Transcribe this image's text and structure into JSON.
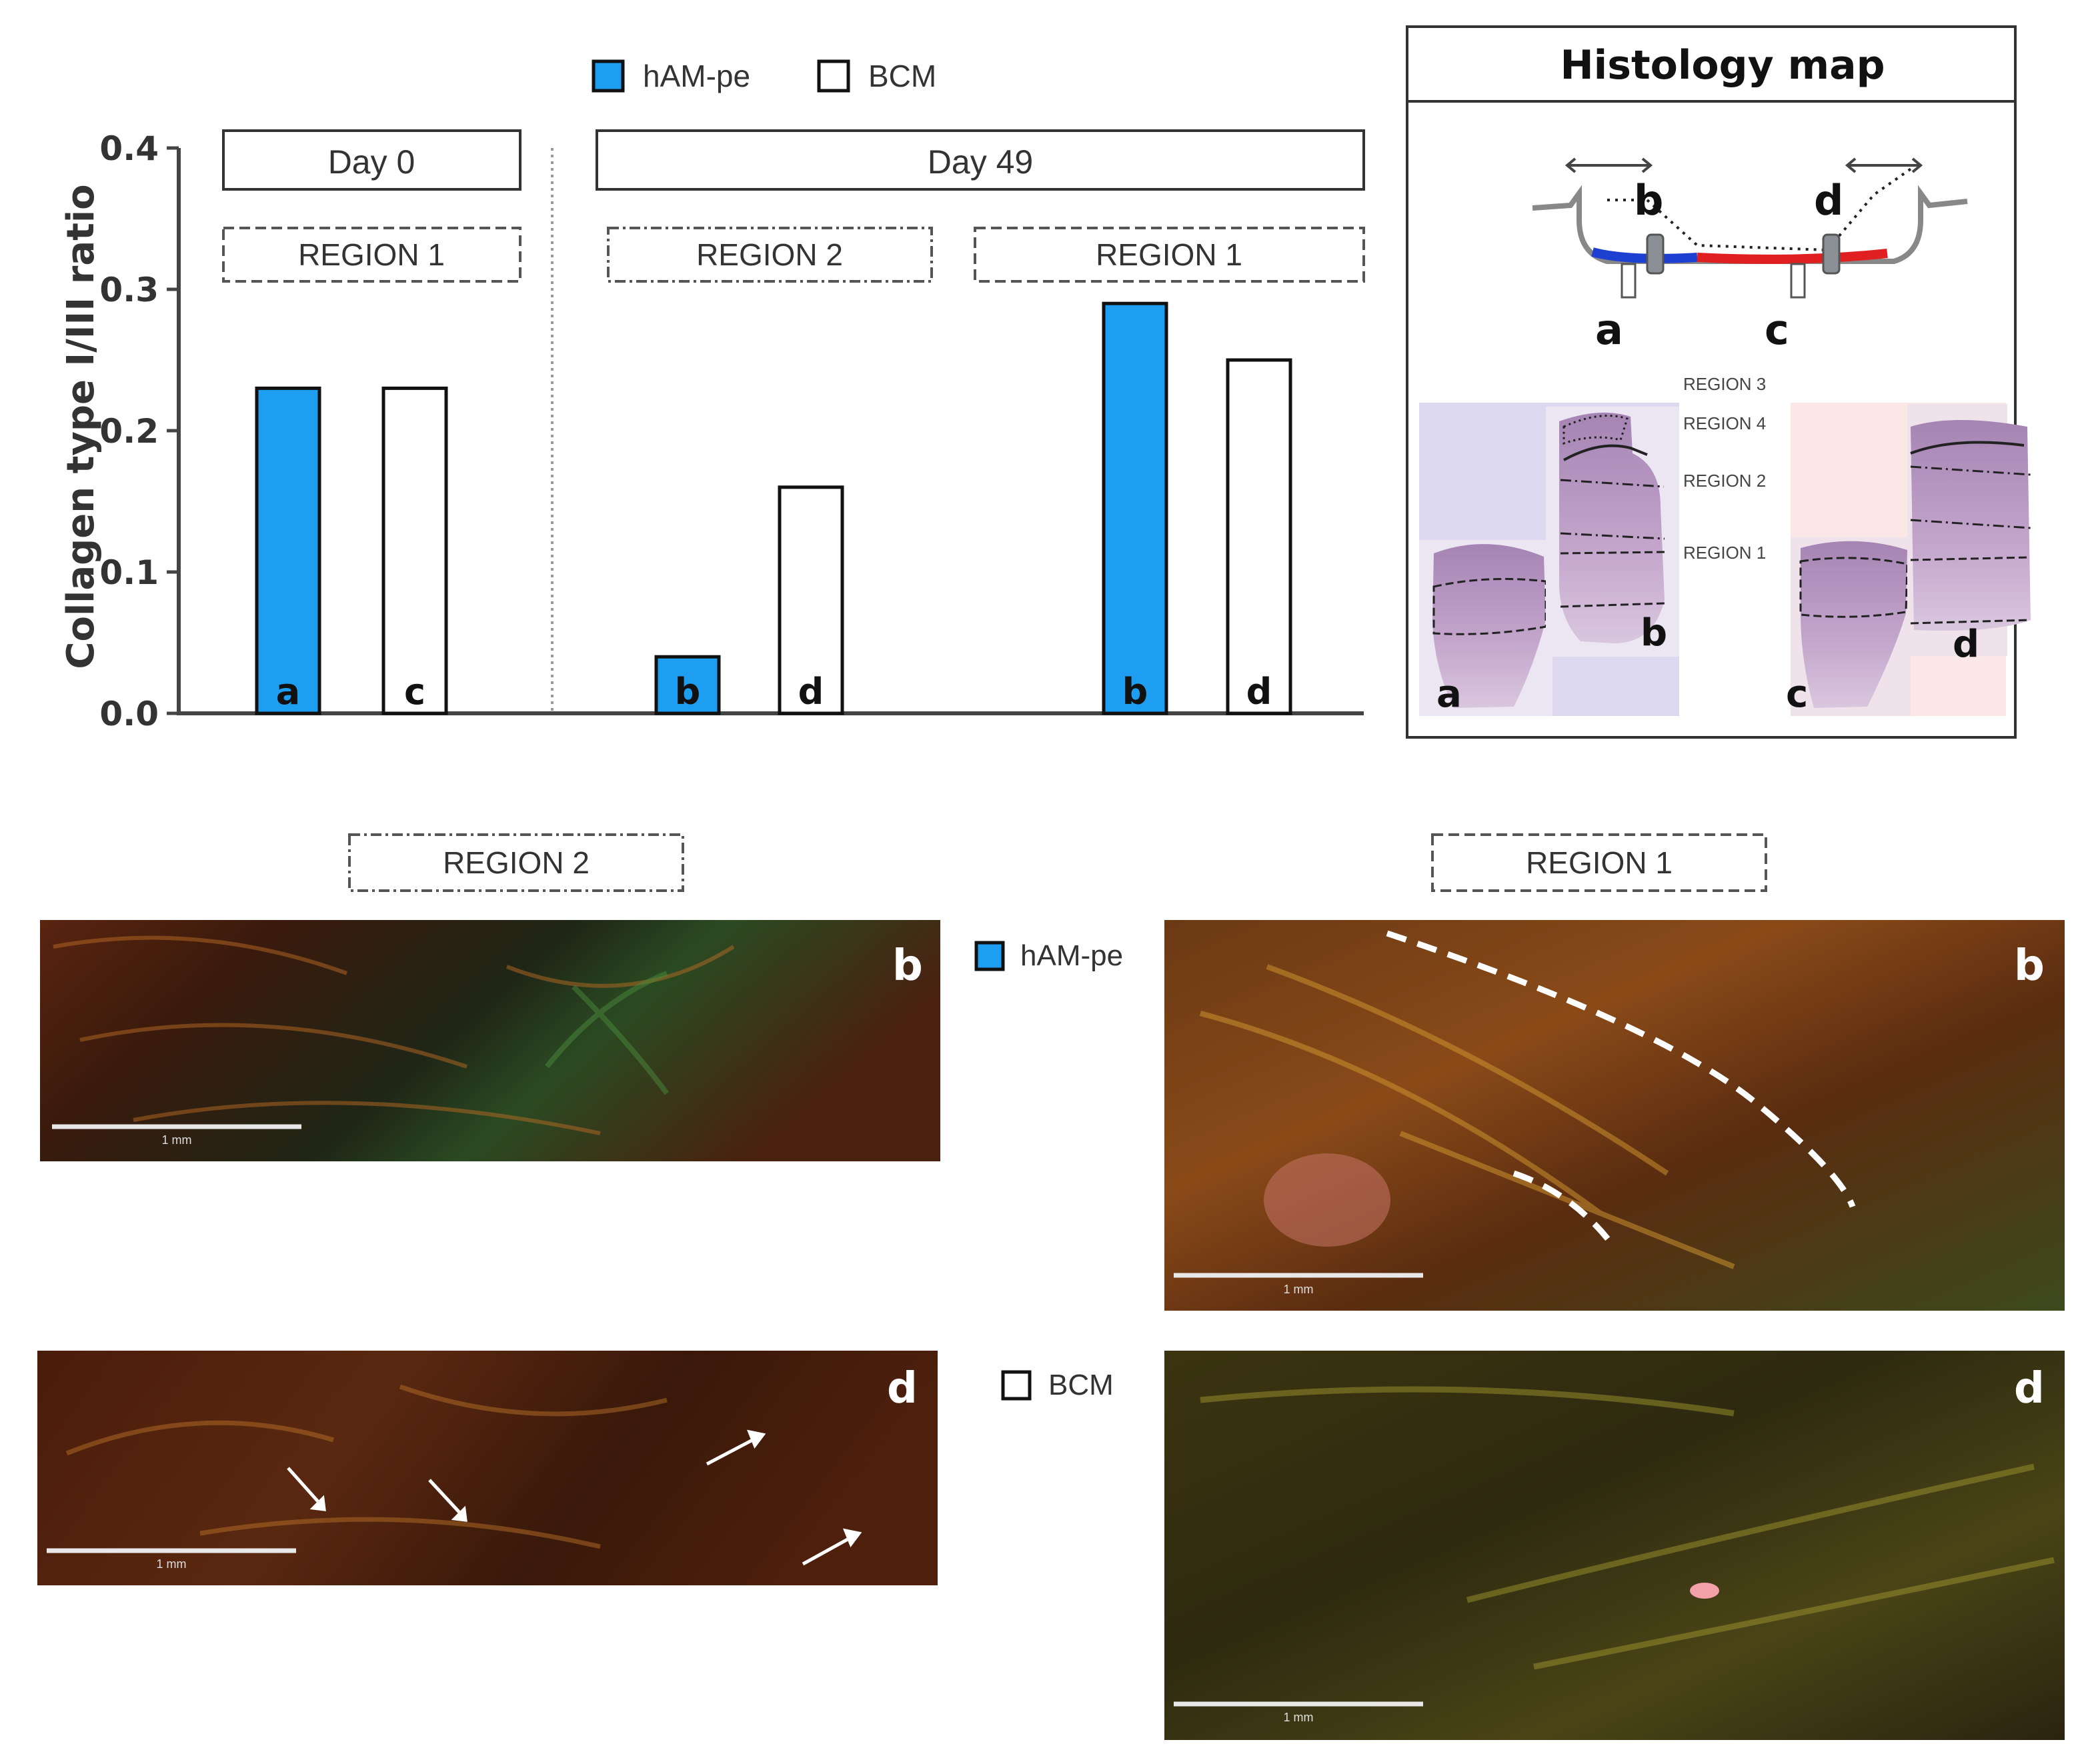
{
  "legend": {
    "items": [
      {
        "name": "hAM-pe",
        "color": "#1e9ef0"
      },
      {
        "name": "BCM",
        "color": "#ffffff"
      }
    ]
  },
  "chart_data": {
    "type": "bar",
    "ylabel": "Collagen type I/III ratio",
    "ylim": [
      0,
      0.4
    ],
    "yticks": [
      "0.0",
      "0.1",
      "0.2",
      "0.3",
      "0.4"
    ],
    "groups": [
      {
        "period": "Day 0",
        "region": "REGION 1"
      },
      {
        "period": "Day 49",
        "region": "REGION 2"
      },
      {
        "period": "Day 49",
        "region": "REGION 1"
      }
    ],
    "day_labels": [
      "Day 0",
      "Day 49"
    ],
    "region_labels": [
      "REGION 1",
      "REGION 2",
      "REGION 1"
    ],
    "bars": [
      {
        "series": "hAM-pe",
        "label": "a",
        "value": 0.23
      },
      {
        "series": "BCM",
        "label": "c",
        "value": 0.23
      },
      {
        "series": "hAM-pe",
        "label": "b",
        "value": 0.04
      },
      {
        "series": "BCM",
        "label": "d",
        "value": 0.16
      },
      {
        "series": "hAM-pe",
        "label": "b",
        "value": 0.29
      },
      {
        "series": "BCM",
        "label": "d",
        "value": 0.25
      }
    ]
  },
  "histology_map": {
    "title": "Histology map",
    "schematic_labels": [
      "b",
      "d",
      "a",
      "c"
    ],
    "region_labels": [
      "REGION 3",
      "REGION 4",
      "REGION 2",
      "REGION 1"
    ],
    "tissue_labels": [
      "a",
      "b",
      "c",
      "d"
    ]
  },
  "micrographs": {
    "region_headers": [
      "REGION 2",
      "REGION 1"
    ],
    "side_legend": [
      "hAM-pe",
      "BCM"
    ],
    "panel_labels": [
      "b",
      "b",
      "d",
      "d"
    ],
    "scale_label": "1 mm"
  }
}
